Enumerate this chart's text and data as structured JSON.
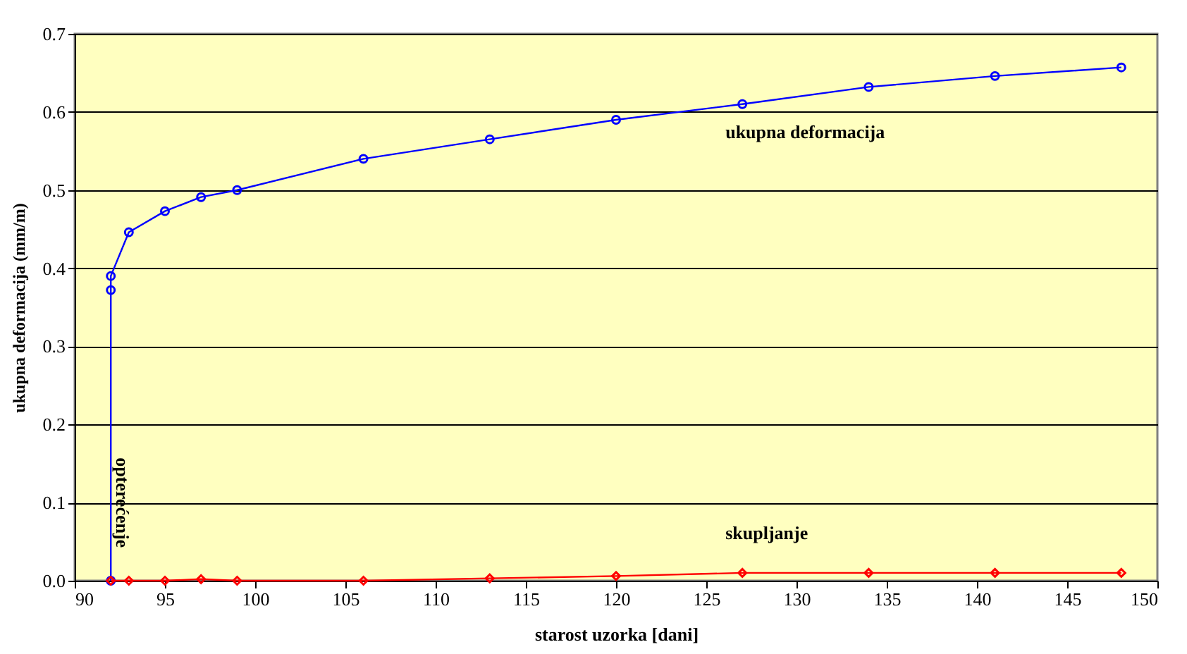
{
  "chart_data": {
    "type": "line",
    "xlabel": "starost uzorka [dani]",
    "ylabel": "ukupna deformacija (mm/m)",
    "xlim": [
      90,
      150
    ],
    "xticks": [
      90,
      95,
      100,
      105,
      110,
      115,
      120,
      125,
      130,
      135,
      140,
      145,
      150
    ],
    "ylim": [
      0,
      0.7
    ],
    "yticks": [
      {
        "value": 0,
        "label": "0.0"
      },
      0.1,
      0.2,
      0.3,
      0.4,
      0.5,
      0.6,
      0.7
    ],
    "grid": "y",
    "legend": false,
    "series": [
      {
        "name": "ukupna deformacija",
        "color": "#0000ff",
        "marker": "circle",
        "x": [
          92,
          92,
          92,
          93,
          95,
          97,
          99,
          106,
          113,
          120,
          127,
          134,
          141,
          148
        ],
        "values": [
          0,
          0.372,
          0.39,
          0.446,
          0.473,
          0.491,
          0.5,
          0.54,
          0.565,
          0.59,
          0.61,
          0.632,
          0.646,
          0.657
        ]
      },
      {
        "name": "skupljanje",
        "color": "#ff0000",
        "marker": "diamond",
        "x": [
          92,
          93,
          95,
          97,
          99,
          106,
          113,
          120,
          127,
          134,
          141,
          148
        ],
        "values": [
          0,
          0,
          0,
          0.002,
          0,
          0,
          0.003,
          0.006,
          0.01,
          0.01,
          0.01,
          0.01
        ]
      }
    ],
    "annotations": [
      {
        "text": "opterećenje",
        "x": 92,
        "y": 0.1
      }
    ]
  }
}
